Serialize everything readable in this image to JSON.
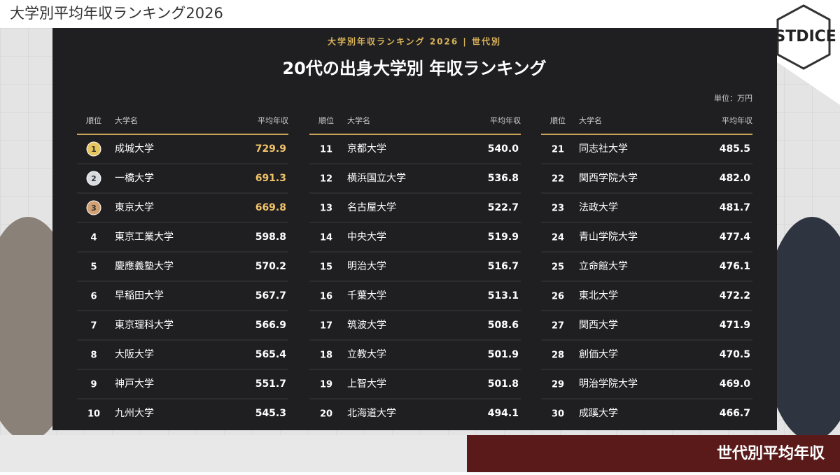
{
  "header": {
    "title": "大学別平均年収ランキング2026",
    "logo": "CASTDICE"
  },
  "panel": {
    "kicker": "大学別年収ランキング 2026 | 世代別",
    "title": "20代の出身大学別 年収ランキング",
    "unit": "単位：万円"
  },
  "table": {
    "columns": [
      {
        "headers": [
          "順位",
          "大学名",
          "平均年収"
        ],
        "rows": [
          [
            1,
            "成城大学",
            "729.9"
          ],
          [
            2,
            "一橋大学",
            "691.3"
          ],
          [
            3,
            "東京大学",
            "669.8"
          ],
          [
            4,
            "東京工業大学",
            "598.8"
          ],
          [
            5,
            "慶應義塾大学",
            "570.2"
          ],
          [
            6,
            "早稲田大学",
            "567.7"
          ],
          [
            7,
            "東京理科大学",
            "566.9"
          ],
          [
            8,
            "大阪大学",
            "565.4"
          ],
          [
            9,
            "神戸大学",
            "551.7"
          ],
          [
            10,
            "九州大学",
            "545.3"
          ]
        ]
      },
      {
        "headers": [
          "順位",
          "大学名",
          "平均年収"
        ],
        "rows": [
          [
            11,
            "京都大学",
            "540.0"
          ],
          [
            12,
            "横浜国立大学",
            "536.8"
          ],
          [
            13,
            "名古屋大学",
            "522.7"
          ],
          [
            14,
            "中央大学",
            "519.9"
          ],
          [
            15,
            "明治大学",
            "516.7"
          ],
          [
            16,
            "千葉大学",
            "513.1"
          ],
          [
            17,
            "筑波大学",
            "508.6"
          ],
          [
            18,
            "立教大学",
            "501.9"
          ],
          [
            19,
            "上智大学",
            "501.8"
          ],
          [
            20,
            "北海道大学",
            "494.1"
          ]
        ]
      },
      {
        "headers": [
          "順位",
          "大学名",
          "平均年収"
        ],
        "rows": [
          [
            21,
            "同志社大学",
            "485.5"
          ],
          [
            22,
            "関西学院大学",
            "482.0"
          ],
          [
            23,
            "法政大学",
            "481.7"
          ],
          [
            24,
            "青山学院大学",
            "477.4"
          ],
          [
            25,
            "立命館大学",
            "476.1"
          ],
          [
            26,
            "東北大学",
            "472.2"
          ],
          [
            27,
            "関西大学",
            "471.9"
          ],
          [
            28,
            "創価大学",
            "470.5"
          ],
          [
            29,
            "明治学院大学",
            "469.0"
          ],
          [
            30,
            "成蹊大学",
            "466.7"
          ]
        ]
      }
    ]
  },
  "footer": {
    "caption": "世代別平均年収"
  }
}
